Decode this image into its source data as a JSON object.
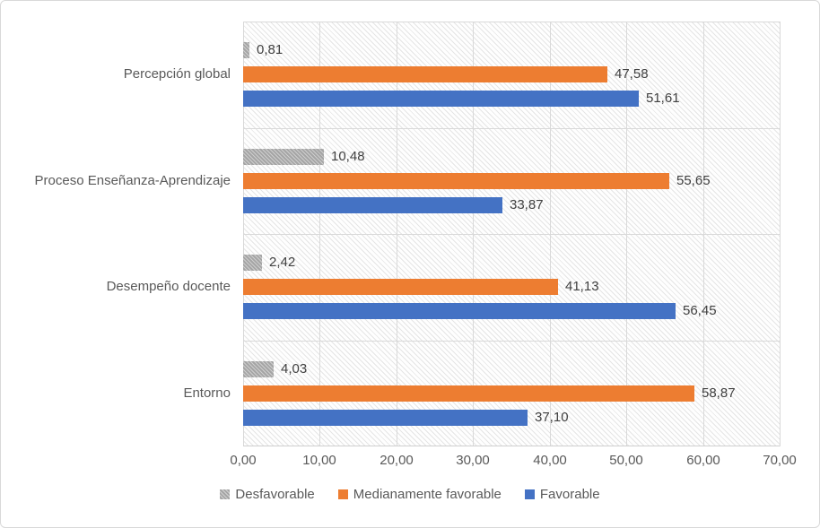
{
  "chart": {
    "background_color": "#FFFFFF",
    "border_color": "#D9D9D9",
    "axis_text_color": "#595959",
    "data_label_color": "#404040",
    "gridline_color": "#D9D9D9",
    "plot_background_pattern": "light-diagonal-hatch"
  },
  "chart_data": {
    "type": "bar",
    "orientation": "horizontal",
    "title": "",
    "xlabel": "",
    "ylabel": "",
    "categories": [
      "Percepción global",
      "Proceso Enseñanza-Aprendizaje",
      "Desempeño docente",
      "Entorno"
    ],
    "series": [
      {
        "name": "Desfavorable",
        "color": "#A5A5A5",
        "pattern_fill": true,
        "values": [
          0.81,
          10.48,
          2.42,
          4.03
        ],
        "labels": [
          "0,81",
          "10,48",
          "2,42",
          "4,03"
        ]
      },
      {
        "name": "Medianamente favorable",
        "color": "#ED7D31",
        "pattern_fill": false,
        "values": [
          47.58,
          55.65,
          41.13,
          58.87
        ],
        "labels": [
          "47,58",
          "55,65",
          "41,13",
          "58,87"
        ]
      },
      {
        "name": "Favorable",
        "color": "#4472C4",
        "pattern_fill": false,
        "values": [
          51.61,
          33.87,
          56.45,
          37.1
        ],
        "labels": [
          "51,61",
          "33,87",
          "56,45",
          "37,10"
        ]
      }
    ],
    "xlim": [
      0,
      70
    ],
    "x_tick_values": [
      0,
      10,
      20,
      30,
      40,
      50,
      60,
      70
    ],
    "x_tick_labels": [
      "0,00",
      "10,00",
      "20,00",
      "30,00",
      "40,00",
      "50,00",
      "60,00",
      "70,00"
    ],
    "grid": true,
    "legend_position": "bottom",
    "data_labels_shown": true
  }
}
